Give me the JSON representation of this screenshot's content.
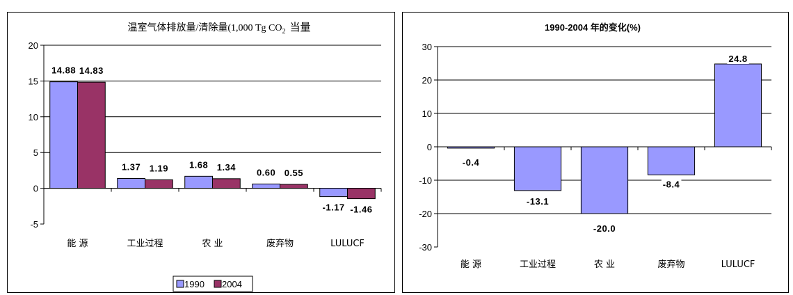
{
  "chart_data": [
    {
      "type": "bar",
      "title": "温室气体排放量/清除量(1,000 Tg CO",
      "title_subscript": "2",
      "title_suffix": "当量",
      "categories": [
        "能 源",
        "工业过程",
        "农 业",
        "废弃物",
        "LULUCF"
      ],
      "series": [
        {
          "name": "1990",
          "values": [
            14.88,
            1.37,
            1.68,
            0.6,
            -1.17
          ],
          "labels": [
            "14.88",
            "1.37",
            "1.68",
            "0.60",
            "-1.17"
          ],
          "color": "#9999FF"
        },
        {
          "name": "2004",
          "values": [
            14.83,
            1.19,
            1.34,
            0.55,
            -1.46
          ],
          "labels": [
            "14.83",
            "1.19",
            "1.34",
            "0.55",
            "-1.46"
          ],
          "color": "#993366"
        }
      ],
      "ylim": [
        -5,
        20
      ],
      "yticks": [
        -5,
        0,
        5,
        10,
        15,
        20
      ],
      "grid": true,
      "legend": "bottom"
    },
    {
      "type": "bar",
      "title": "1990-2004 年的变化(%)",
      "categories": [
        "能 源",
        "工业过程",
        "农 业",
        "废弃物",
        "LULUCF"
      ],
      "series": [
        {
          "values": [
            -0.4,
            -13.1,
            -20.0,
            -8.4,
            24.8
          ],
          "labels": [
            "-0.4",
            "-13.1",
            "-20.0",
            "-8.4",
            "24.8"
          ],
          "color": "#9999FF"
        }
      ],
      "ylim": [
        -30,
        30
      ],
      "yticks": [
        -30,
        -20,
        -10,
        0,
        10,
        20,
        30
      ],
      "grid": true
    }
  ]
}
